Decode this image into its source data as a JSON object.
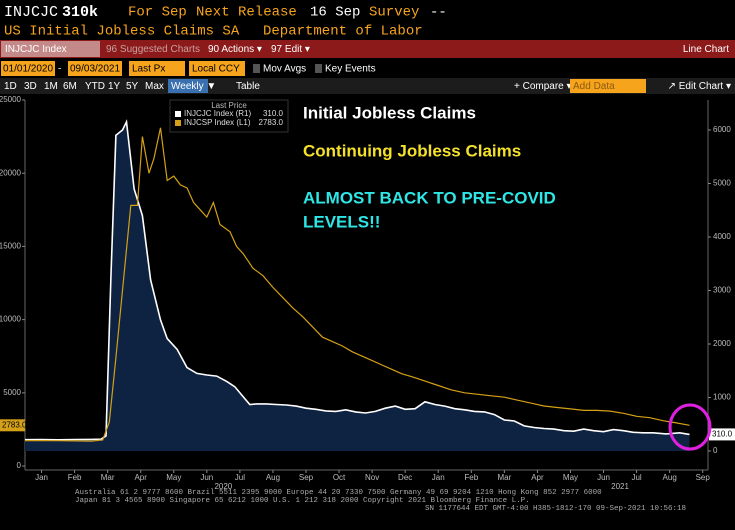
{
  "header": {
    "ticker": "INJCJC",
    "value": "310k",
    "period": "For Sep",
    "next_label": "Next Release",
    "next_date": "16 Sep",
    "survey_label": "Survey",
    "survey_value": "--",
    "description": "US Initial Jobless Claims SA",
    "source": "Department of Labor"
  },
  "toolbar": {
    "security": "INJCJC Index",
    "suggested": "96 Suggested Charts",
    "actions": "90 Actions ▾",
    "edit": "97 Edit ▾",
    "chart_type": "Line Chart",
    "start_date": "01/01/2020",
    "end_date": "09/03/2021",
    "field": "Last Px",
    "currency": "Local CCY",
    "mov_avgs": "Mov Avgs",
    "key_events": "Key Events",
    "ranges": [
      "1D",
      "3D",
      "1M",
      "6M",
      "YTD",
      "1Y",
      "5Y",
      "Max"
    ],
    "frequency": "Weekly ▼",
    "table": "Table",
    "compare": "+ Compare ▾",
    "add_data": "Add Data",
    "edit_chart": "↗ Edit Chart ▾"
  },
  "chart_data": {
    "type": "line",
    "legend_title": "Last Price",
    "annotations": [
      "Initial Jobless Claims",
      "Continuing Jobless Claims",
      "ALMOST BACK TO PRE-COVID",
      "LEVELS!!"
    ],
    "xlim": [
      0,
      20.66
    ],
    "xticks": [
      {
        "value": 0.5,
        "label": "Jan"
      },
      {
        "value": 1.5,
        "label": "Feb"
      },
      {
        "value": 2.5,
        "label": "Mar"
      },
      {
        "value": 3.5,
        "label": "Apr"
      },
      {
        "value": 4.5,
        "label": "May"
      },
      {
        "value": 5.5,
        "label": "Jun"
      },
      {
        "value": 6.5,
        "label": "Jul"
      },
      {
        "value": 7.5,
        "label": "Aug"
      },
      {
        "value": 8.5,
        "label": "Sep"
      },
      {
        "value": 9.5,
        "label": "Oct"
      },
      {
        "value": 10.5,
        "label": "Nov"
      },
      {
        "value": 11.5,
        "label": "Dec"
      },
      {
        "value": 12.5,
        "label": "Jan"
      },
      {
        "value": 13.5,
        "label": "Feb"
      },
      {
        "value": 14.5,
        "label": "Mar"
      },
      {
        "value": 15.5,
        "label": "Apr"
      },
      {
        "value": 16.5,
        "label": "May"
      },
      {
        "value": 17.5,
        "label": "Jun"
      },
      {
        "value": 18.5,
        "label": "Jul"
      },
      {
        "value": 19.5,
        "label": "Aug"
      },
      {
        "value": 20.5,
        "label": "Sep"
      }
    ],
    "year_ticks": [
      {
        "value": 6,
        "label": "2020"
      },
      {
        "value": 18,
        "label": "2021"
      }
    ],
    "ylim": [
      -270,
      25000
    ],
    "yticks": [
      0,
      5000,
      10000,
      15000,
      20000,
      25000
    ],
    "y2lim": [
      -355,
      6560
    ],
    "y2ticks": [
      0,
      1000,
      2000,
      3000,
      4000,
      5000,
      6000
    ],
    "series": [
      {
        "name": "INJCJC Index (R1)",
        "last_label": "310.0",
        "color": "#ffffff",
        "fill": "#0e2342",
        "axis": "y2",
        "x": [
          0,
          0.5,
          1,
          1.5,
          2,
          2.3,
          2.45,
          2.6,
          2.75,
          2.95,
          3.07,
          3.3,
          3.55,
          3.8,
          4.1,
          4.3,
          4.6,
          4.9,
          5.2,
          5.5,
          5.8,
          6.1,
          6.35,
          6.55,
          6.8,
          7.0,
          7.3,
          7.6,
          7.9,
          8.2,
          8.5,
          8.8,
          9.1,
          9.4,
          9.7,
          10,
          10.3,
          10.6,
          10.9,
          11.2,
          11.5,
          11.8,
          12.1,
          12.4,
          12.7,
          13.0,
          13.3,
          13.6,
          13.9,
          14.2,
          14.5,
          14.8,
          15.1,
          15.4,
          15.7,
          16.0,
          16.3,
          16.6,
          16.9,
          17.2,
          17.5,
          17.8,
          18.1,
          18.4,
          18.7,
          19.0,
          19.4,
          19.8,
          20.1
        ],
        "values": [
          211,
          214,
          210,
          215,
          216,
          220,
          282,
          3300,
          5900,
          6000,
          6150,
          4900,
          4400,
          3200,
          2450,
          2100,
          1900,
          1560,
          1450,
          1420,
          1400,
          1300,
          1200,
          1050,
          870,
          880,
          880,
          870,
          860,
          840,
          800,
          780,
          750,
          740,
          770,
          730,
          710,
          740,
          800,
          840,
          780,
          790,
          920,
          870,
          840,
          790,
          770,
          740,
          730,
          680,
          580,
          560,
          470,
          440,
          420,
          410,
          380,
          370,
          410,
          380,
          360,
          400,
          380,
          350,
          340,
          340,
          320,
          340,
          310
        ]
      },
      {
        "name": "INJCSP Index (L1)",
        "last_label": "2783.0",
        "color": "#d4a017",
        "axis": "y",
        "x": [
          0,
          0.5,
          1,
          1.5,
          2,
          2.35,
          2.55,
          2.75,
          2.95,
          3.2,
          3.4,
          3.55,
          3.75,
          3.9,
          4.1,
          4.3,
          4.5,
          4.7,
          4.9,
          5.1,
          5.3,
          5.5,
          5.7,
          5.9,
          6.2,
          6.4,
          6.6,
          6.9,
          7.2,
          7.5,
          7.8,
          8.1,
          8.4,
          8.7,
          9.0,
          9.3,
          9.6,
          9.9,
          10.2,
          10.5,
          10.8,
          11.1,
          11.4,
          11.7,
          12.1,
          12.5,
          12.9,
          13.3,
          13.7,
          14.1,
          14.5,
          14.9,
          15.3,
          15.7,
          16.1,
          16.5,
          16.9,
          17.3,
          17.7,
          18.1,
          18.5,
          18.9,
          19.3,
          19.7,
          20.1
        ],
        "values": [
          1740,
          1740,
          1730,
          1720,
          1700,
          1780,
          3000,
          7400,
          12000,
          17800,
          17800,
          22500,
          20000,
          21000,
          23100,
          19500,
          19800,
          19200,
          19000,
          18000,
          17500,
          17000,
          18000,
          16500,
          16000,
          15000,
          14500,
          13500,
          13000,
          12200,
          11500,
          10800,
          10200,
          9500,
          8800,
          8500,
          8200,
          7800,
          7500,
          7200,
          6900,
          6600,
          6300,
          6100,
          5800,
          5500,
          5200,
          5000,
          4900,
          4800,
          4700,
          4500,
          4300,
          4100,
          4000,
          3900,
          3800,
          3800,
          3750,
          3600,
          3400,
          3300,
          3100,
          2950,
          2783
        ]
      }
    ]
  },
  "footer": [
    "Australia 61 2 9777 8600 Brazil 5511 2395 9000 Europe 44 20 7330 7500 Germany 49 69 9204 1210 Hong Kong 852 2977 6000",
    "Japan 81 3 4565 8900 Singapore 65 6212 1000 U.S. 1 212 318 2000 Copyright 2021 Bloomberg Finance L.P.",
    "SN 1177644 EDT GMT-4:00 H385-1812-170 09-Sep-2021 10:56:18"
  ]
}
